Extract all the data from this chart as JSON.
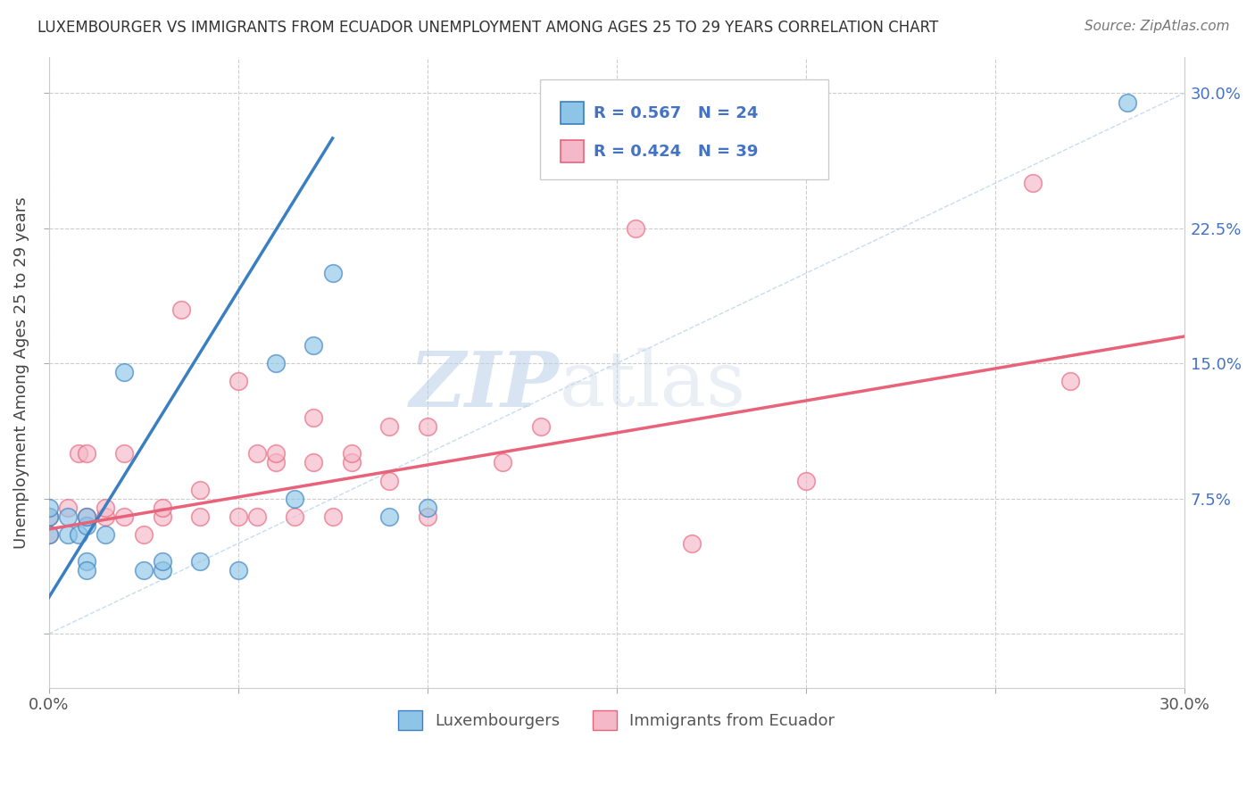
{
  "title": "LUXEMBOURGER VS IMMIGRANTS FROM ECUADOR UNEMPLOYMENT AMONG AGES 25 TO 29 YEARS CORRELATION CHART",
  "source": "Source: ZipAtlas.com",
  "ylabel": "Unemployment Among Ages 25 to 29 years",
  "xlim": [
    0.0,
    0.3
  ],
  "ylim": [
    -0.03,
    0.32
  ],
  "x_ticks": [
    0.0,
    0.05,
    0.1,
    0.15,
    0.2,
    0.25,
    0.3
  ],
  "x_tick_labels": [
    "0.0%",
    "",
    "",
    "",
    "",
    "",
    "30.0%"
  ],
  "y_ticks": [
    0.0,
    0.075,
    0.15,
    0.225,
    0.3
  ],
  "r_blue": 0.567,
  "n_blue": 24,
  "r_pink": 0.424,
  "n_pink": 39,
  "blue_color": "#8ec5e6",
  "pink_color": "#f5b8c8",
  "trend_blue": "#3a7fc1",
  "trend_pink": "#e8637a",
  "diagonal_color": "#b8d4ec",
  "watermark_zip": "ZIP",
  "watermark_atlas": "atlas",
  "legend_labels": [
    "Luxembourgers",
    "Immigrants from Ecuador"
  ],
  "blue_scatter_x": [
    0.0,
    0.0,
    0.0,
    0.005,
    0.005,
    0.008,
    0.01,
    0.01,
    0.01,
    0.01,
    0.015,
    0.02,
    0.025,
    0.03,
    0.03,
    0.04,
    0.05,
    0.06,
    0.065,
    0.07,
    0.075,
    0.09,
    0.1,
    0.285
  ],
  "blue_scatter_y": [
    0.055,
    0.065,
    0.07,
    0.055,
    0.065,
    0.055,
    0.06,
    0.065,
    0.04,
    0.035,
    0.055,
    0.145,
    0.035,
    0.035,
    0.04,
    0.04,
    0.035,
    0.15,
    0.075,
    0.16,
    0.2,
    0.065,
    0.07,
    0.295
  ],
  "pink_scatter_x": [
    0.0,
    0.0,
    0.005,
    0.008,
    0.01,
    0.01,
    0.015,
    0.015,
    0.02,
    0.02,
    0.025,
    0.03,
    0.03,
    0.035,
    0.04,
    0.04,
    0.05,
    0.05,
    0.055,
    0.055,
    0.06,
    0.06,
    0.065,
    0.07,
    0.07,
    0.075,
    0.08,
    0.08,
    0.09,
    0.09,
    0.1,
    0.1,
    0.12,
    0.13,
    0.155,
    0.17,
    0.2,
    0.26,
    0.27
  ],
  "pink_scatter_y": [
    0.055,
    0.065,
    0.07,
    0.1,
    0.065,
    0.1,
    0.065,
    0.07,
    0.065,
    0.1,
    0.055,
    0.065,
    0.07,
    0.18,
    0.065,
    0.08,
    0.065,
    0.14,
    0.065,
    0.1,
    0.095,
    0.1,
    0.065,
    0.12,
    0.095,
    0.065,
    0.095,
    0.1,
    0.115,
    0.085,
    0.065,
    0.115,
    0.095,
    0.115,
    0.225,
    0.05,
    0.085,
    0.25,
    0.14
  ],
  "blue_trend_x0": 0.0,
  "blue_trend_y0": 0.02,
  "blue_trend_x1": 0.075,
  "blue_trend_y1": 0.275,
  "pink_trend_x0": 0.0,
  "pink_trend_y0": 0.058,
  "pink_trend_x1": 0.3,
  "pink_trend_y1": 0.165
}
